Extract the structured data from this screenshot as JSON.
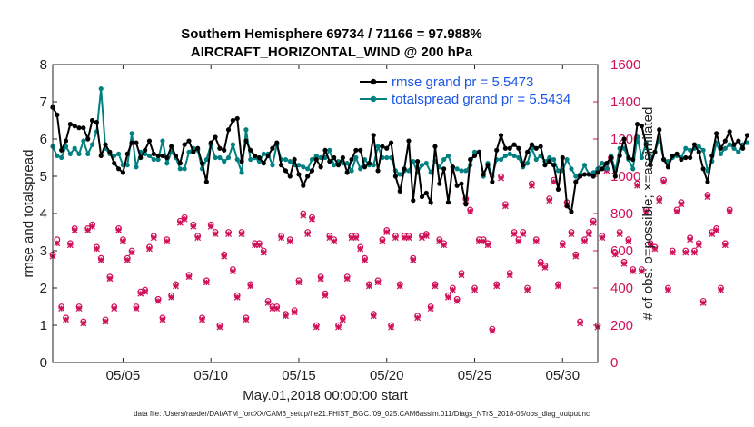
{
  "page": {
    "title_line1": "Southern Hemisphere 69734 / 71166 = 97.988%",
    "title_line2": "AIRCRAFT_HORIZONTAL_WIND @ 200 hPa",
    "xlabel": "May.01,2018 00:00:00 start",
    "ylabel_left": "rmse and totalspread",
    "ylabel_right": "# of obs: o=possible; ×=assimilated",
    "footnote": "data file: /Users/raeder/DAI/ATM_forcXX/CAM6_setup/f.e21.FHIST_BGC.f09_025.CAM6assim.011/Diags_NTrS_2018-05/obs_diag_output.nc",
    "legend": {
      "rmse": "rmse grand pr = 5.5473",
      "spread": "totalspread grand pr = 5.5434"
    },
    "colors": {
      "rmse": "#000000",
      "spread": "#008080",
      "obs": "#d0105a",
      "right_axis": "#d0105a"
    }
  },
  "chart_data": {
    "type": "line",
    "title": "Southern Hemisphere 69734 / 71166 = 97.988%",
    "xlabel": "May.01,2018 00:00:00 start",
    "ylabel": "rmse and totalspread",
    "y2label": "# of obs: o=possible; ×=assimilated",
    "xlim": [
      1,
      32
    ],
    "ylim": [
      0,
      8
    ],
    "y2lim": [
      0,
      1600
    ],
    "x_ticks": [
      5,
      10,
      15,
      20,
      25,
      30
    ],
    "x_tick_labels": [
      "05/05",
      "05/10",
      "05/15",
      "05/20",
      "05/25",
      "05/30"
    ],
    "y_ticks": [
      0,
      1,
      2,
      3,
      4,
      5,
      6,
      7,
      8
    ],
    "y_tick_labels": [
      "0",
      "1",
      "2",
      "3",
      "4",
      "5",
      "6",
      "7",
      "8"
    ],
    "y2_ticks": [
      0,
      200,
      400,
      600,
      800,
      1000,
      1200,
      1400,
      1600
    ],
    "y2_tick_labels": [
      "0",
      "200",
      "400",
      "600",
      "800",
      "1000",
      "1200",
      "1400",
      "1600"
    ],
    "time_step_days": 0.25,
    "series": [
      {
        "name": "rmse grand pr = 5.5473",
        "axis": "left",
        "values": [
          6.85,
          6.65,
          5.7,
          5.95,
          6.4,
          6.35,
          6.3,
          6.3,
          6.0,
          6.5,
          6.45,
          5.55,
          5.85,
          5.65,
          5.35,
          5.2,
          5.1,
          5.6,
          5.9,
          5.9,
          5.5,
          5.7,
          5.95,
          5.6,
          5.55,
          5.55,
          5.5,
          5.8,
          5.55,
          5.35,
          5.85,
          5.95,
          5.65,
          5.75,
          5.35,
          4.85,
          5.9,
          6.05,
          5.75,
          5.7,
          6.25,
          6.5,
          6.55,
          5.4,
          5.95,
          5.7,
          5.55,
          5.5,
          5.35,
          5.55,
          5.75,
          5.9,
          5.3,
          5.15,
          5.0,
          5.45,
          5.05,
          4.75,
          5.0,
          5.15,
          5.45,
          5.25,
          5.7,
          5.4,
          5.5,
          5.3,
          5.5,
          5.1,
          5.45,
          5.7,
          5.7,
          5.25,
          5.35,
          6.1,
          5.15,
          5.8,
          5.75,
          5.9,
          5.0,
          4.6,
          5.2,
          5.95,
          4.35,
          5.4,
          4.45,
          4.55,
          4.3,
          5.8,
          4.8,
          5.2,
          4.3,
          5.25,
          4.75,
          4.8,
          4.25,
          5.45,
          5.55,
          5.65,
          5.05,
          5.3,
          4.85,
          5.7,
          6.1,
          5.75,
          5.75,
          5.85,
          5.75,
          5.3,
          5.65,
          5.85,
          5.75,
          5.8,
          5.3,
          5.4,
          5.3,
          4.65,
          5.5,
          4.2,
          4.05,
          4.85,
          5.0,
          5.05,
          5.05,
          5.0,
          5.1,
          5.2,
          5.35,
          5.5,
          5.0,
          5.55,
          6.0,
          5.5,
          5.45,
          6.4,
          6.35,
          5.85,
          5.3,
          5.65,
          6.25,
          5.45,
          5.25,
          5.55,
          5.6,
          5.45,
          5.5,
          5.5,
          5.85,
          5.65,
          5.2,
          4.85,
          5.55,
          6.15,
          5.75,
          5.95,
          6.2,
          5.85,
          5.95,
          5.75,
          6.1
        ]
      },
      {
        "name": "totalspread grand pr = 5.5434",
        "axis": "left",
        "values": [
          5.8,
          5.55,
          5.5,
          5.8,
          5.6,
          5.75,
          5.6,
          5.95,
          5.6,
          5.85,
          6.2,
          7.35,
          5.75,
          5.6,
          5.55,
          5.6,
          5.3,
          5.3,
          6.15,
          5.25,
          5.65,
          5.6,
          5.55,
          5.45,
          5.45,
          5.95,
          5.35,
          5.65,
          5.5,
          5.2,
          5.2,
          5.65,
          5.75,
          5.7,
          5.2,
          5.45,
          5.85,
          5.5,
          5.5,
          5.4,
          5.5,
          5.85,
          5.45,
          5.1,
          6.25,
          5.45,
          5.5,
          5.4,
          5.6,
          5.6,
          5.3,
          5.85,
          5.45,
          5.45,
          5.4,
          5.3,
          5.3,
          5.25,
          5.2,
          5.45,
          5.55,
          5.5,
          5.5,
          5.7,
          5.3,
          5.4,
          5.35,
          5.35,
          5.15,
          5.5,
          5.2,
          5.45,
          5.3,
          5.3,
          5.8,
          5.5,
          5.5,
          5.5,
          5.15,
          5.05,
          5.15,
          5.15,
          5.4,
          5.1,
          5.3,
          5.35,
          5.1,
          5.4,
          5.25,
          5.45,
          5.55,
          5.25,
          5.2,
          5.15,
          5.15,
          5.3,
          5.65,
          5.65,
          5.0,
          5.35,
          5.0,
          5.45,
          5.45,
          5.55,
          5.6,
          5.55,
          5.5,
          5.25,
          5.35,
          5.75,
          5.45,
          5.55,
          5.4,
          5.5,
          5.45,
          5.15,
          5.15,
          5.45,
          5.2,
          5.0,
          5.05,
          5.3,
          5.05,
          5.1,
          5.2,
          5.35,
          5.2,
          5.55,
          5.15,
          5.75,
          5.75,
          5.45,
          5.2,
          6.05,
          5.5,
          5.9,
          5.45,
          5.65,
          6.0,
          5.45,
          5.4,
          5.5,
          5.55,
          5.5,
          5.75,
          5.7,
          5.75,
          5.8,
          5.7,
          5.15,
          5.4,
          5.9,
          5.6,
          5.75,
          5.85,
          5.75,
          5.65,
          5.85,
          5.9
        ]
      },
      {
        "name": "# of obs possible (o)",
        "axis": "right",
        "values": [
          580,
          660,
          300,
          240,
          640,
          720,
          300,
          220,
          720,
          740,
          620,
          560,
          230,
          460,
          300,
          720,
          660,
          560,
          600,
          300,
          380,
          390,
          620,
          680,
          340,
          240,
          660,
          360,
          420,
          760,
          780,
          470,
          740,
          680,
          240,
          440,
          740,
          700,
          200,
          580,
          700,
          500,
          360,
          700,
          240,
          420,
          640,
          640,
          600,
          330,
          300,
          300,
          680,
          260,
          660,
          280,
          440,
          800,
          700,
          780,
          200,
          460,
          370,
          680,
          660,
          200,
          240,
          460,
          680,
          680,
          620,
          560,
          420,
          260,
          440,
          660,
          710,
          200,
          680,
          420,
          680,
          680,
          560,
          250,
          680,
          690,
          300,
          420,
          660,
          640,
          360,
          400,
          340,
          480,
          880,
          820,
          400,
          660,
          660,
          640,
          180,
          420,
          1000,
          850,
          480,
          700,
          660,
          700,
          400,
          960,
          660,
          540,
          520,
          880,
          980,
          420,
          640,
          860,
          700,
          580,
          220,
          660,
          700,
          760,
          200,
          680,
          1040,
          1100,
          590,
          700,
          540,
          660,
          500,
          960,
          500,
          820,
          640,
          620,
          880,
          980,
          400,
          600,
          820,
          860,
          600,
          670,
          600,
          640,
          330,
          900,
          700,
          720,
          400,
          640,
          820
        ]
      },
      {
        "name": "# of obs assimilated (×)",
        "axis": "right",
        "values": [
          570,
          640,
          290,
          230,
          630,
          710,
          290,
          210,
          710,
          730,
          610,
          550,
          220,
          450,
          290,
          710,
          650,
          550,
          590,
          290,
          370,
          380,
          610,
          670,
          330,
          230,
          650,
          350,
          410,
          750,
          770,
          460,
          730,
          670,
          230,
          430,
          730,
          690,
          190,
          570,
          690,
          490,
          350,
          690,
          230,
          410,
          630,
          630,
          590,
          320,
          290,
          290,
          670,
          250,
          650,
          270,
          430,
          790,
          690,
          770,
          190,
          450,
          360,
          670,
          650,
          190,
          230,
          450,
          670,
          670,
          610,
          550,
          410,
          250,
          430,
          650,
          700,
          190,
          670,
          410,
          670,
          670,
          550,
          240,
          670,
          680,
          290,
          410,
          650,
          630,
          350,
          390,
          330,
          470,
          870,
          810,
          390,
          650,
          650,
          630,
          170,
          410,
          990,
          840,
          470,
          690,
          650,
          690,
          390,
          950,
          650,
          530,
          510,
          870,
          970,
          410,
          630,
          850,
          690,
          570,
          210,
          650,
          690,
          750,
          190,
          670,
          1030,
          1090,
          580,
          690,
          530,
          650,
          490,
          950,
          490,
          810,
          630,
          610,
          870,
          970,
          390,
          590,
          810,
          850,
          590,
          660,
          590,
          630,
          320,
          890,
          690,
          710,
          390,
          630,
          810
        ]
      }
    ]
  }
}
